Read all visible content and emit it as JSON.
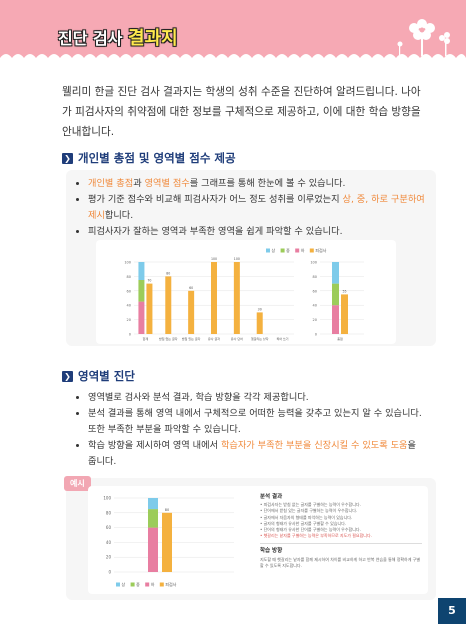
{
  "header": {
    "title_prefix": "진단 검사 ",
    "title_highlight": "결과지"
  },
  "intro": "웰리미 한글 진단 검사 결과지는 학생의 성취 수준을 진단하여 알려드립니다. 나아가 피검사자의 취약점에 대한 정보를 구체적으로 제공하고, 이에 대한 학습 방향을 안내합니다.",
  "section1": {
    "title": "개인별 총점 및 영역별 점수 제공",
    "b1": {
      "hl1": "개인별 총점",
      "t1": "과 ",
      "hl2": "영역별 점수",
      "t2": "를 그래프를 통해 한눈에 볼 수 있습니다."
    },
    "b2": {
      "t1": "평가 기준 점수와 비교해 피검사자가 어느 정도 성취를 이루었는지 ",
      "hl": "상, 중, 하로 구분하여 제시",
      "t2": "합니다."
    },
    "b3": "피검사자가 잘하는 영역과 부족한 영역을 쉽게 파악할 수 있습니다."
  },
  "section2": {
    "title": "영역별 진단",
    "b1": "영역별로 검사와 분석 결과, 학습 방향을 각각 제공합니다.",
    "b2": "분석 결과를 통해 영역 내에서 구체적으로 어떠한 능력을 갖추고 있는지 알 수 있습니다. 또한 부족한 부분을 파악할 수 있습니다.",
    "b3": {
      "t1": "학습 방향을 제시하여 영역 내에서 ",
      "hl": "학습자가 부족한 부분을 신장시킬 수 있도록 도움",
      "t2": "을 줍니다."
    }
  },
  "example": {
    "tag": "예시",
    "analysis_title": "분석 결과",
    "analysis_lines": [
      "• 피검사자는 받침 없는 글자를 구별하는 능력이 우수합니다.",
      "• 단어에서 받침 있는 글자를 구별하는 능력이 우수합니다.",
      "• 글자에서 자음자의 형태를 파악하는 능력이 있습니다.",
      "• 글자의 형태가 유사한 글자를 구별할 수 있습니다.",
      "• 단어의 형태가 유사한 단어를 구별하는 능력이 우수합니다."
    ],
    "analysis_red": "• 헷갈리는 낱자를 구별하는 능력은 부족하므로 지도가 필요합니다.",
    "direction_title": "학습 방향",
    "direction_text": "지도할 때 헷갈리는 낱자를 함께 제시하여 차이를 비교하게 하고 반복 연습을 통해 정확하게 구별할 수 있도록 지도합니다."
  },
  "page_number": "5",
  "colors": {
    "blue": "#7ecbea",
    "green": "#9ccc5a",
    "pink": "#e87ea1",
    "orange": "#f4b13f",
    "accent": "#f08a3c",
    "navy": "#1f3d7a"
  },
  "chart_data": [
    {
      "type": "bar",
      "title": "",
      "legend": [
        "상",
        "중",
        "하",
        "피검사"
      ],
      "ylim": [
        0,
        100
      ],
      "yticks": [
        0,
        20,
        40,
        60,
        80,
        100
      ],
      "categories": [
        "합계",
        "받침 없는 글자",
        "받침 있는 글자",
        "유사 글자",
        "유사 단어",
        "헷갈리는 낱자",
        "띄어 쓰기"
      ],
      "criteria_stack": {
        "pink": 45,
        "green": 30,
        "blue": 25
      },
      "stack_categories": [
        "합계"
      ],
      "values": [
        70,
        80,
        60,
        100,
        100,
        30,
        null
      ],
      "side_chart": {
        "categories": [
          "총점"
        ],
        "stack": {
          "pink": 40,
          "green": 30,
          "blue": 30
        },
        "value": 55
      }
    },
    {
      "type": "bar",
      "ylim": [
        0,
        100
      ],
      "yticks": [
        0,
        20,
        40,
        60,
        80,
        100
      ],
      "stack": {
        "pink": 60,
        "green": 25,
        "blue": 15
      },
      "value": 80,
      "legend": [
        "상",
        "중",
        "하",
        "피검사"
      ]
    }
  ]
}
